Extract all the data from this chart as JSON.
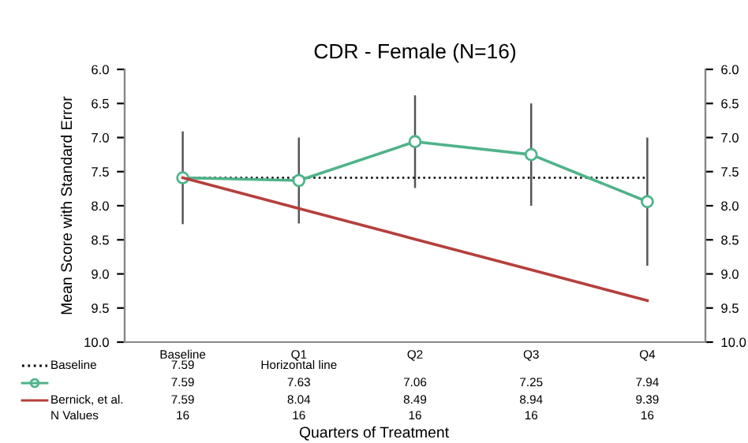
{
  "chart_data": {
    "type": "line",
    "title": "CDR - Female (N=16)",
    "xlabel": "Quarters of Treatment",
    "ylabel": "Mean Score with Standard Error",
    "categories": [
      "Baseline",
      "Q1",
      "Q2",
      "Q3",
      "Q4"
    ],
    "series": [
      {
        "name": "Baseline",
        "color": "#000000",
        "line_style": "dotted",
        "marker": "none",
        "values": [
          7.59,
          7.59,
          7.59,
          7.59,
          7.59
        ],
        "value_labels": [
          "7.59",
          "Horizontal line",
          null,
          null,
          null
        ]
      },
      {
        "color": "#4fb38a",
        "line_style": "solid",
        "marker": "circle",
        "values": [
          7.59,
          7.63,
          7.06,
          7.25,
          7.94
        ],
        "errors": [
          0.68,
          0.63,
          0.68,
          0.75,
          0.94
        ],
        "value_labels": [
          "7.59",
          "7.63",
          "7.06",
          "7.25",
          "7.94"
        ]
      },
      {
        "name": "Bernick, et al.",
        "color": "#b5403c",
        "line_style": "solid",
        "marker": "none",
        "values": [
          7.59,
          8.04,
          8.49,
          8.94,
          9.39
        ],
        "value_labels": [
          "7.59",
          "8.04",
          "8.49",
          "8.94",
          "9.39"
        ]
      }
    ],
    "annotations": [
      "N Values",
      "16",
      "16",
      "16",
      "16",
      "16"
    ],
    "ylim": [
      10.0,
      6.0
    ],
    "yticks": [
      {
        "value": 6,
        "label": "6.0"
      },
      {
        "value": 6.5,
        "label": "6.5"
      },
      {
        "value": 7,
        "label": "7.0"
      },
      {
        "value": 7.5,
        "label": "7.5"
      },
      {
        "value": 8,
        "label": "8.0"
      },
      {
        "value": 8.5,
        "label": "8.5"
      },
      {
        "value": 9,
        "label": "9.0"
      },
      {
        "value": 9.5,
        "label": "9.5"
      },
      {
        "value": 10,
        "label": "10.0"
      }
    ],
    "y2lim": [
      10.0,
      6.0
    ],
    "y2ticks": [
      {
        "value": 6,
        "label": "6.0"
      },
      {
        "value": 6.5,
        "label": "6.5"
      },
      {
        "value": 7,
        "label": "7.0"
      },
      {
        "value": 7.5,
        "label": "7.5"
      },
      {
        "value": 8,
        "label": "8.0"
      },
      {
        "value": 8.5,
        "label": "8.5"
      },
      {
        "value": 9,
        "label": "9.0"
      },
      {
        "value": 9.5,
        "label": "9.5"
      },
      {
        "value": 10,
        "label": "10.0"
      }
    ],
    "grid": false,
    "legend": "bottom"
  }
}
